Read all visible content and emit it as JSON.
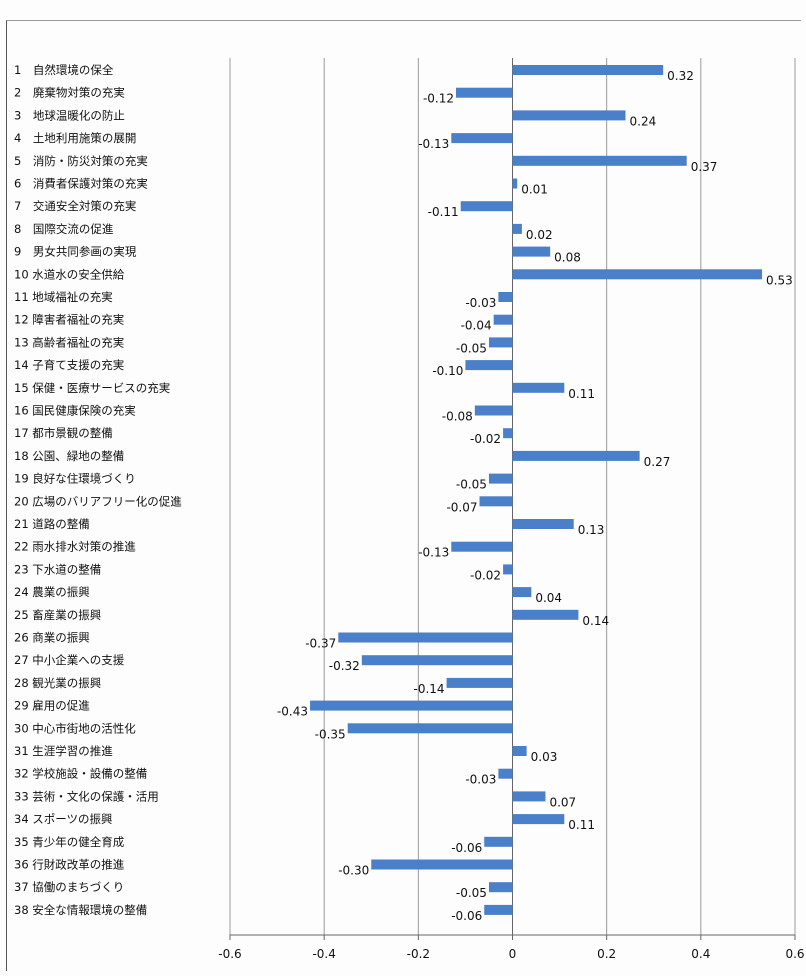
{
  "chart_data": {
    "type": "bar",
    "orientation": "horizontal",
    "xlim": [
      -0.6,
      0.6
    ],
    "xticks": [
      "-0.6",
      "-0.4",
      "-0.2",
      "0",
      "0.2",
      "0.4",
      "0.6"
    ],
    "grid": true,
    "bar_color": "#4a7fc9",
    "categories": [
      "1　自然環境の保全",
      "2　廃棄物対策の充実",
      "3　地球温暖化の防止",
      "4　土地利用施策の展開",
      "5　消防・防災対策の充実",
      "6　消費者保護対策の充実",
      "7　交通安全対策の充実",
      "8　国際交流の促進",
      "9　男女共同参画の実現",
      "10 水道水の安全供給",
      "11 地域福祉の充実",
      "12 障害者福祉の充実",
      "13 高齢者福祉の充実",
      "14 子育て支援の充実",
      "15 保健・医療サービスの充実",
      "16 国民健康保険の充実",
      "17 都市景観の整備",
      "18 公園、緑地の整備",
      "19 良好な住環境づくり",
      "20 広場のバリアフリー化の促進",
      "21 道路の整備",
      "22 雨水排水対策の推進",
      "23 下水道の整備",
      "24 農業の振興",
      "25 畜産業の振興",
      "26 商業の振興",
      "27 中小企業への支援",
      "28 観光業の振興",
      "29 雇用の促進",
      "30 中心市街地の活性化",
      "31 生涯学習の推進",
      "32 学校施設・設備の整備",
      "33 芸術・文化の保護・活用",
      "34 スポーツの振興",
      "35 青少年の健全育成",
      "36 行財政改革の推進",
      "37 協働のまちづくり",
      "38 安全な情報環境の整備"
    ],
    "values": [
      0.32,
      -0.12,
      0.24,
      -0.13,
      0.37,
      0.01,
      -0.11,
      0.02,
      0.08,
      0.53,
      -0.03,
      -0.04,
      -0.05,
      -0.1,
      0.11,
      -0.08,
      -0.02,
      0.27,
      -0.05,
      -0.07,
      0.13,
      -0.13,
      -0.02,
      0.04,
      0.14,
      -0.37,
      -0.32,
      -0.14,
      -0.43,
      -0.35,
      0.03,
      -0.03,
      0.07,
      0.11,
      -0.06,
      -0.3,
      -0.05,
      -0.06
    ],
    "value_labels": [
      "0.32",
      "-0.12",
      "0.24",
      "-0.13",
      "0.37",
      "0.01",
      "-0.11",
      "0.02",
      "0.08",
      "0.53",
      "-0.03",
      "-0.04",
      "-0.05",
      "-0.10",
      "0.11",
      "-0.08",
      "-0.02",
      "0.27",
      "-0.05",
      "-0.07",
      "0.13",
      "-0.13",
      "-0.02",
      "0.04",
      "0.14",
      "-0.37",
      "-0.32",
      "-0.14",
      "-0.43",
      "-0.35",
      "0.03",
      "-0.03",
      "0.07",
      "0.11",
      "-0.06",
      "-0.30",
      "-0.05",
      "-0.06"
    ]
  }
}
